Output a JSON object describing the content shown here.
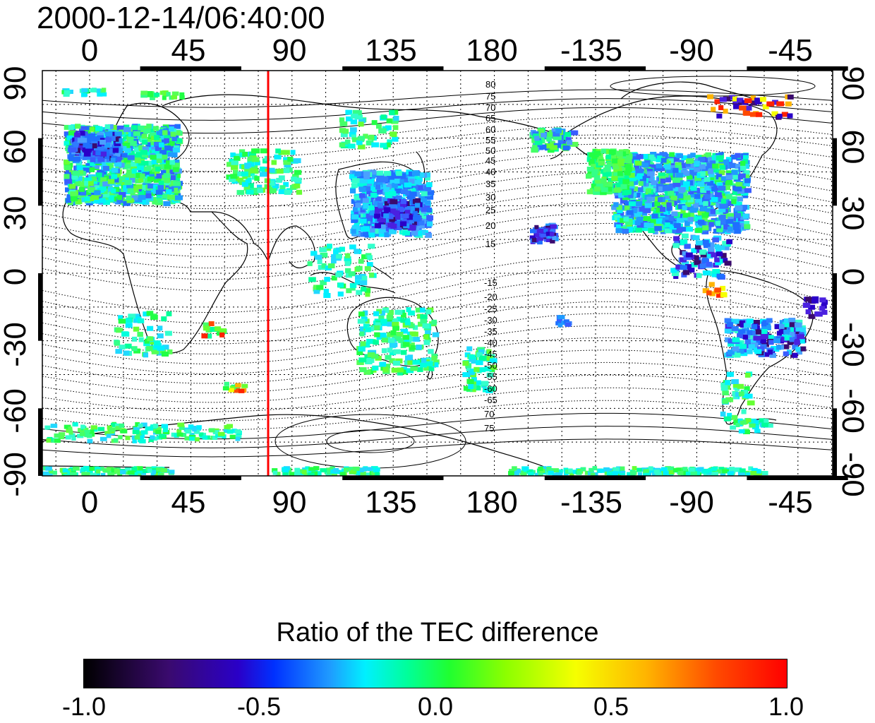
{
  "header": {
    "timestamp": "2000-12-14/06:40:00"
  },
  "map": {
    "lon_labels_top": [
      "0",
      "45",
      "90",
      "135",
      "180",
      "-135",
      "-90",
      "-45"
    ],
    "lon_labels_bottom": [
      "0",
      "45",
      "90",
      "135",
      "180",
      "-135",
      "-90",
      "-45"
    ],
    "lat_labels_left": [
      "90",
      "60",
      "30",
      "0",
      "-30",
      "-60",
      "-90"
    ],
    "lat_labels_right": [
      "90",
      "60",
      "30",
      "0",
      "-30",
      "-60",
      "-90"
    ],
    "contour_labels_north": [
      "80",
      "75",
      "70",
      "65",
      "60",
      "55",
      "50",
      "45",
      "40",
      "35",
      "30",
      "25",
      "20",
      "15"
    ],
    "contour_labels_south": [
      "-15",
      "-20",
      "-25",
      "-30",
      "-35",
      "-40",
      "-45",
      "-50",
      "-55",
      "-60",
      "-65",
      "70",
      "75"
    ],
    "marker_line_color": "#ff0000",
    "marker_line_longitude": 80
  },
  "colorbar": {
    "title": "Ratio of the TEC difference",
    "ticks": [
      "-1.0",
      "-0.5",
      "0.0",
      "0.5",
      "1.0"
    ],
    "range": [
      -1.0,
      1.0
    ]
  }
}
